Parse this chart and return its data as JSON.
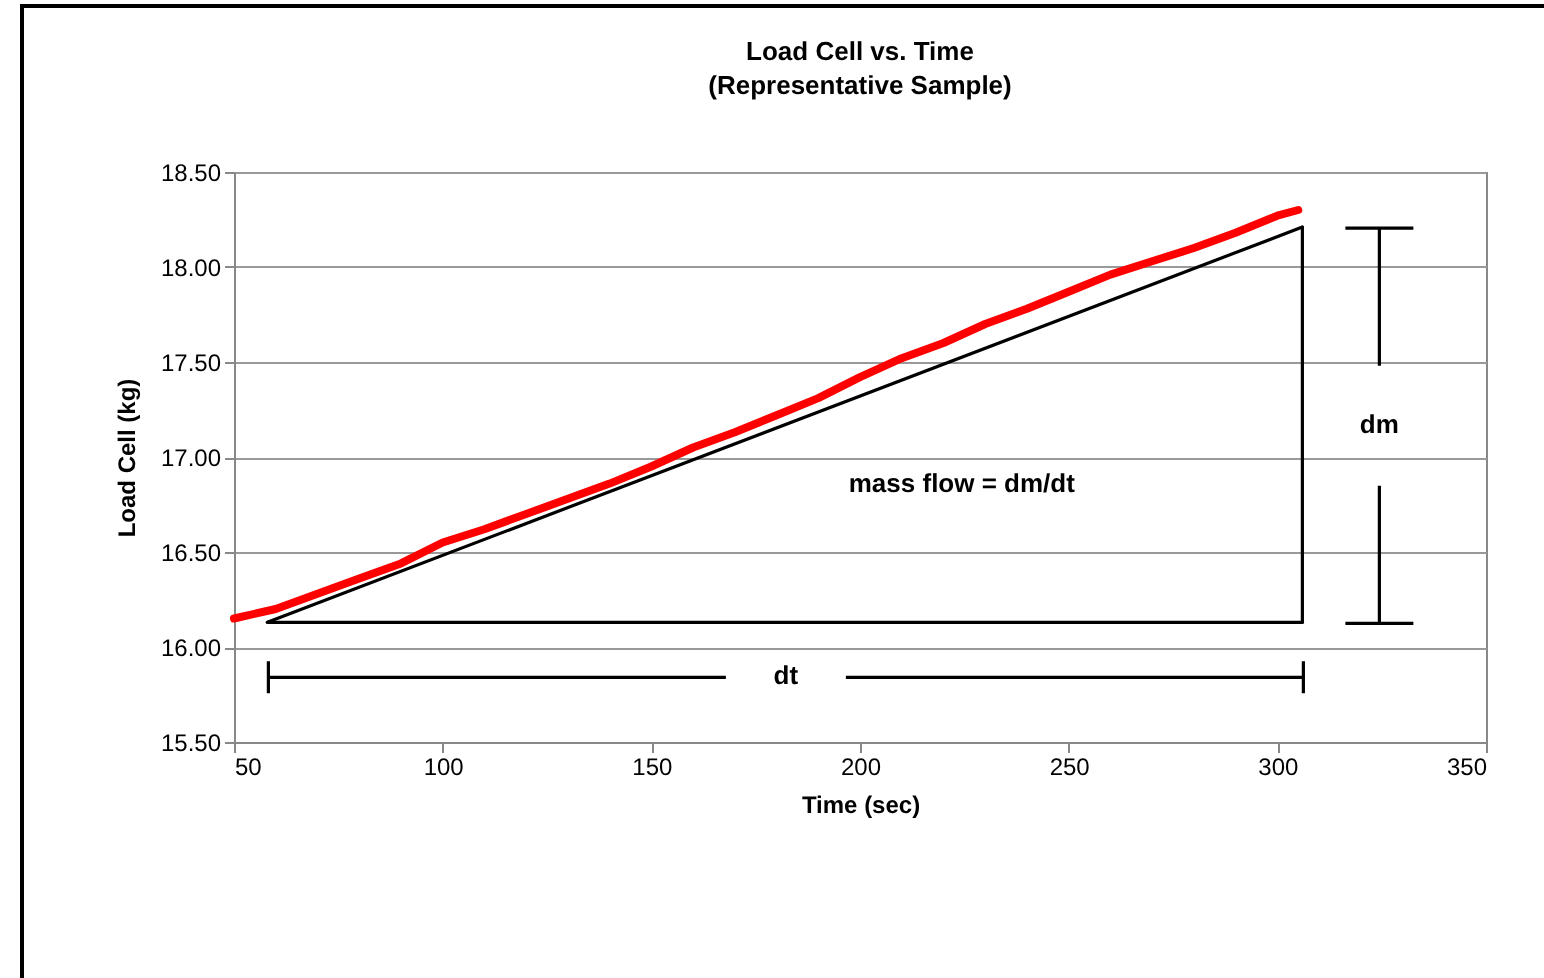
{
  "chart_data": {
    "type": "line",
    "title": "Load Cell vs. Time",
    "subtitle": "(Representative Sample)",
    "xlabel": "Time (sec)",
    "ylabel": "Load Cell (kg)",
    "xlim": [
      50,
      350
    ],
    "xticks": [
      50,
      100,
      150,
      200,
      250,
      300,
      350
    ],
    "ylim": [
      15.5,
      18.5
    ],
    "yticks": [
      {
        "value": 15.5,
        "label": "15.50"
      },
      {
        "value": 16,
        "label": "16.00"
      },
      {
        "value": 16.5,
        "label": "16.50"
      },
      {
        "value": 17,
        "label": "17.00"
      },
      {
        "value": 17.5,
        "label": "17.50"
      },
      {
        "value": 18,
        "label": "18.00"
      },
      {
        "value": 18.5,
        "label": "18.50"
      }
    ],
    "grid": "y",
    "marker": "none",
    "line_style": "solid",
    "series": [
      {
        "color": "#ff0000",
        "x": [
          50,
          60,
          70,
          80,
          90,
          100,
          110,
          120,
          130,
          140,
          150,
          160,
          170,
          180,
          190,
          200,
          210,
          220,
          230,
          240,
          250,
          260,
          270,
          280,
          290,
          300,
          305
        ],
        "values": [
          16.15,
          16.2,
          16.28,
          16.36,
          16.44,
          16.55,
          16.62,
          16.7,
          16.78,
          16.86,
          16.95,
          17.05,
          17.13,
          17.22,
          17.31,
          17.42,
          17.52,
          17.6,
          17.7,
          17.78,
          17.87,
          17.96,
          18.03,
          18.1,
          18.18,
          18.27,
          18.3
        ]
      },
      {
        "type": "line",
        "color": "#000000",
        "x": [
          58,
          306
        ],
        "values": [
          16.13,
          18.21
        ]
      },
      {
        "type": "line",
        "color": "#000000",
        "x": [
          58,
          306
        ],
        "values": [
          16.13,
          16.13
        ]
      },
      {
        "type": "line",
        "color": "#000000",
        "x": [
          306,
          306
        ],
        "values": [
          16.13,
          18.21
        ]
      }
    ],
    "annotations": [
      "mass flow = dm/dt",
      "dt",
      "dm"
    ]
  }
}
